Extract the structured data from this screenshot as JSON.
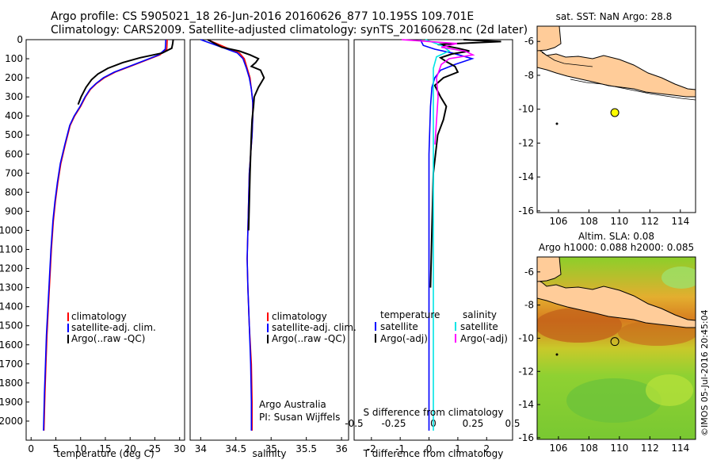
{
  "header": {
    "line1": "Argo profile: CS 5905021_18 26-Jun-2016 20160626_877 10.195S 109.701E",
    "line2": "Climatology: CARS2009. Satellite-adjusted climatology: synTS_20160628.nc (2d later)"
  },
  "map_top": {
    "title": "sat. SST: NaN Argo: 28.8",
    "xticks": [
      "106",
      "108",
      "110",
      "112",
      "114"
    ],
    "yticks": [
      "-6",
      "-8",
      "-10",
      "-12",
      "-14",
      "-16"
    ],
    "argo_lon": 109.7,
    "argo_lat": -10.2
  },
  "map_bottom": {
    "title_line1": "Altim. SLA: 0.08",
    "title_line2": "Argo h1000: 0.088 h2000: 0.085",
    "xticks": [
      "106",
      "108",
      "110",
      "112",
      "114"
    ],
    "yticks": [
      "-6",
      "-8",
      "-10",
      "-12",
      "-14",
      "-16"
    ],
    "argo_lon": 109.7,
    "argo_lat": -10.2
  },
  "footer": {
    "credit": "©IMOS 05-Jul-2016 20:45:04"
  },
  "colors": {
    "climatology": "#ff0000",
    "satellite": "#0000ff",
    "argo": "#000000",
    "sat_sal": "#00e5e5",
    "argo_sal": "#ff00ff",
    "land": "#ffcc99",
    "marker": "#ffff00"
  },
  "chart_data": [
    {
      "type": "line",
      "name": "temperature",
      "xlabel": "temperature (deg C)",
      "ylabel": "depth",
      "xlim": [
        -1,
        31
      ],
      "ylim": [
        2100,
        0
      ],
      "xticks": [
        "0",
        "5",
        "10",
        "15",
        "20",
        "25",
        "30"
      ],
      "xtick_values": [
        0,
        5,
        10,
        15,
        20,
        25,
        30
      ],
      "yticks": [
        "0",
        "100",
        "200",
        "300",
        "400",
        "500",
        "600",
        "700",
        "800",
        "900",
        "1000",
        "1100",
        "1200",
        "1300",
        "1400",
        "1500",
        "1600",
        "1700",
        "1800",
        "1900",
        "2000"
      ],
      "ytick_values": [
        0,
        100,
        200,
        300,
        400,
        500,
        600,
        700,
        800,
        900,
        1000,
        1100,
        1200,
        1300,
        1400,
        1500,
        1600,
        1700,
        1800,
        1900,
        2000
      ],
      "legend": [
        "climatology",
        "satellite-adj. clim.",
        "Argo(..raw -QC)"
      ],
      "series": [
        {
          "name": "climatology",
          "x": [
            27.5,
            27.4,
            26,
            23,
            20,
            17,
            14.8,
            13.2,
            12,
            11,
            10,
            8.8,
            7.9,
            6.9,
            6,
            5.4,
            4.9,
            4.5,
            4.1,
            3.8,
            3.5,
            3.2,
            3.0,
            2.8,
            2.6
          ],
          "y": [
            0,
            50,
            80,
            110,
            140,
            170,
            200,
            230,
            260,
            300,
            350,
            400,
            450,
            550,
            650,
            750,
            850,
            950,
            1100,
            1250,
            1400,
            1550,
            1700,
            1850,
            2050
          ]
        },
        {
          "name": "satellite",
          "x": [
            27.2,
            27.1,
            25.8,
            22.8,
            19.8,
            16.8,
            14.6,
            13.1,
            11.9,
            10.9,
            9.9,
            8.7,
            7.8,
            6.8,
            5.9,
            5.3,
            4.8,
            4.4,
            4.0,
            3.7,
            3.4,
            3.1,
            2.9,
            2.7,
            2.5
          ],
          "y": [
            0,
            50,
            80,
            110,
            140,
            170,
            200,
            230,
            260,
            300,
            350,
            400,
            450,
            550,
            650,
            750,
            850,
            950,
            1100,
            1250,
            1400,
            1550,
            1700,
            1850,
            2050
          ]
        },
        {
          "name": "argo",
          "x": [
            28.7,
            28.6,
            28.4,
            26.5,
            22,
            18.5,
            15.5,
            13.5,
            12.2,
            11.1,
            10.1,
            9.5
          ],
          "y": [
            0,
            20,
            45,
            70,
            95,
            120,
            150,
            180,
            210,
            250,
            300,
            340
          ]
        }
      ]
    },
    {
      "type": "line",
      "name": "salinity",
      "xlabel": "salinity",
      "xlim": [
        33.85,
        36.1
      ],
      "ylim": [
        2100,
        0
      ],
      "xticks": [
        "34",
        "34.5",
        "35",
        "35.5",
        "36"
      ],
      "xtick_values": [
        34,
        34.5,
        35,
        35.5,
        36
      ],
      "legend": [
        "climatology",
        "satellite-adj. clim.",
        "Argo(..raw -QC)"
      ],
      "notes": [
        "Argo Australia",
        "PI: Susan Wijffels"
      ],
      "series": [
        {
          "name": "climatology",
          "x": [
            34.1,
            34.35,
            34.55,
            34.62,
            34.66,
            34.7,
            34.72,
            34.74,
            34.74,
            34.73,
            34.71,
            34.69,
            34.68,
            34.67,
            34.66,
            34.67,
            34.69,
            34.72,
            34.73,
            34.73
          ],
          "y": [
            0,
            40,
            70,
            100,
            150,
            200,
            260,
            330,
            400,
            500,
            600,
            700,
            850,
            1000,
            1150,
            1300,
            1500,
            1700,
            1900,
            2050
          ]
        },
        {
          "name": "satellite",
          "x": [
            34.0,
            34.3,
            34.52,
            34.6,
            34.65,
            34.69,
            34.72,
            34.74,
            34.74,
            34.73,
            34.71,
            34.69,
            34.68,
            34.67,
            34.66,
            34.67,
            34.69,
            34.71,
            34.72,
            34.72
          ],
          "y": [
            0,
            40,
            70,
            100,
            150,
            200,
            260,
            330,
            400,
            500,
            600,
            700,
            850,
            1000,
            1150,
            1300,
            1500,
            1700,
            1900,
            2050
          ]
        },
        {
          "name": "argo",
          "x": [
            34.1,
            34.3,
            34.55,
            34.7,
            34.82,
            34.78,
            34.72,
            34.85,
            34.9,
            34.82,
            34.76,
            34.75,
            34.73,
            34.72,
            34.71,
            34.7,
            34.69,
            34.68
          ],
          "y": [
            0,
            40,
            60,
            80,
            100,
            120,
            140,
            160,
            200,
            250,
            300,
            350,
            420,
            500,
            600,
            700,
            850,
            1000
          ]
        }
      ]
    },
    {
      "type": "line",
      "name": "difference",
      "xlabel": "T difference from climatology",
      "xlabel_top": "S difference from climatology",
      "xlim": [
        -2.6,
        2.9
      ],
      "ylim": [
        2100,
        0
      ],
      "xticks": [
        "-2",
        "-1",
        "0",
        "1",
        "2"
      ],
      "xtick_values": [
        -2,
        -1,
        0,
        1,
        2
      ],
      "sticks": [
        "-0.5",
        "-0.25",
        "0",
        "0.25",
        "0.5"
      ],
      "stick_values": [
        -0.5,
        -0.25,
        0,
        0.25,
        0.5
      ],
      "legend_titles": [
        "temperature",
        "salinity"
      ],
      "legend": [
        "satellite",
        "Argo(-adj)",
        "satellite",
        "Argo(-adj)"
      ],
      "series": [
        {
          "name": "temperature satellite",
          "x": [
            -0.3,
            -0.2,
            0.2,
            0.8,
            1.5,
            0.9,
            0.4,
            0.2,
            0.1,
            0.05,
            0,
            0
          ],
          "y": [
            0,
            30,
            50,
            70,
            100,
            130,
            160,
            200,
            250,
            350,
            600,
            2050
          ]
        },
        {
          "name": "temperature argo",
          "x": [
            1.2,
            2.5,
            0.3,
            1.0,
            1.4,
            0.8,
            0.4,
            0.6,
            0.9,
            1.0,
            0.5,
            0.2,
            0.4,
            0.6,
            0.5,
            0.3,
            0.15,
            0.1,
            0.05
          ],
          "y": [
            0,
            10,
            25,
            45,
            60,
            75,
            95,
            115,
            140,
            170,
            200,
            240,
            300,
            350,
            420,
            500,
            700,
            1000,
            1300
          ]
        },
        {
          "name": "salinity satellite",
          "x": [
            -0.05,
            0.05,
            0.1,
            0.02,
            0,
            0,
            0
          ],
          "y": [
            0,
            30,
            60,
            90,
            150,
            500,
            2050
          ]
        },
        {
          "name": "salinity argo",
          "x": [
            -0.2,
            0.15,
            0.05,
            0.2,
            0.25,
            0.1,
            0.05,
            0.02,
            0.03,
            0.01
          ],
          "y": [
            0,
            20,
            40,
            60,
            80,
            100,
            130,
            200,
            300,
            550
          ]
        }
      ]
    }
  ]
}
